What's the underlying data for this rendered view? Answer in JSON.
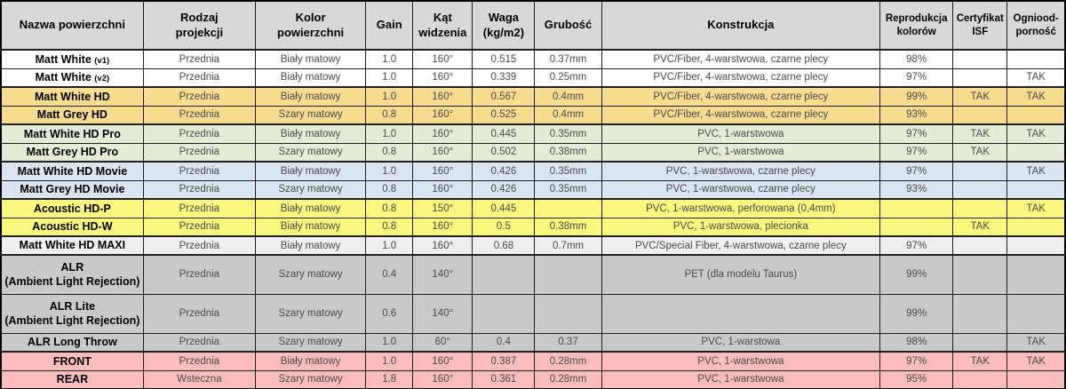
{
  "table": {
    "header_bg": "#D8D8D8",
    "text_color": "#4A4A4A",
    "group_colors": {
      "white": "#FFFFFF",
      "tan": "#F7DB8E",
      "green": "#E4ECD8",
      "blue": "#D9E5F1",
      "yellow": "#FAF77E",
      "lightgray": "#EFEFEF",
      "gray": "#C9C9C9",
      "pink": "#FABDBB"
    },
    "columns": [
      {
        "key": "name",
        "label": "Nazwa powierzchni",
        "small": false
      },
      {
        "key": "projection",
        "label": "Rodzaj\nprojekcji",
        "small": false
      },
      {
        "key": "color",
        "label": "Kolor\npowierzchni",
        "small": false
      },
      {
        "key": "gain",
        "label": "Gain",
        "small": false
      },
      {
        "key": "angle",
        "label": "Kąt\nwidzenia",
        "small": false
      },
      {
        "key": "weight",
        "label": "Waga\n(kg/m2)",
        "small": false
      },
      {
        "key": "thickness",
        "label": "Grubość",
        "small": false
      },
      {
        "key": "construction",
        "label": "Konstrukcja",
        "small": false
      },
      {
        "key": "reproduction",
        "label": "Reprodukcja\nkolorów",
        "small": true
      },
      {
        "key": "isf",
        "label": "Certyfikat\nISF",
        "small": true
      },
      {
        "key": "fire",
        "label": "Ogniood-\nporność",
        "small": true
      }
    ],
    "rows": [
      {
        "group": "white",
        "name": "Matt White",
        "name_suffix": "(v1)",
        "tall": false,
        "projection": "Przednia",
        "color": "Biały matowy",
        "gain": "1.0",
        "angle": "160°",
        "weight": "0.515",
        "thickness": "0.37mm",
        "construction": "PVC/Fiber, 4-warstwowa, czarne plecy",
        "reproduction": "98%",
        "isf": "",
        "fire": ""
      },
      {
        "group": "white",
        "name": "Matt White",
        "name_suffix": "(v2)",
        "tall": false,
        "projection": "Przednia",
        "color": "Biały matowy",
        "gain": "1.0",
        "angle": "160°",
        "weight": "0.339",
        "thickness": "0.25mm",
        "construction": "PVC/Fiber, 4-warstwowa, czarne plecy",
        "reproduction": "97%",
        "isf": "",
        "fire": "TAK"
      },
      {
        "group": "tan",
        "name": "Matt White HD",
        "name_suffix": "",
        "tall": false,
        "projection": "Przednia",
        "color": "Biały matowy",
        "gain": "1.0",
        "angle": "160°",
        "weight": "0.567",
        "thickness": "0.4mm",
        "construction": "PVC/Fiber, 4-warstwowa, czarne plecy",
        "reproduction": "99%",
        "isf": "TAK",
        "fire": "TAK"
      },
      {
        "group": "tan",
        "name": "Matt Grey HD",
        "name_suffix": "",
        "tall": false,
        "projection": "Przednia",
        "color": "Szary matowy",
        "gain": "0.8",
        "angle": "160°",
        "weight": "0.525",
        "thickness": "0.4mm",
        "construction": "PVC/Fiber, 4-warstwowa, czarne plecy",
        "reproduction": "93%",
        "isf": "",
        "fire": ""
      },
      {
        "group": "green",
        "name": "Matt White HD Pro",
        "name_suffix": "",
        "tall": false,
        "projection": "Przednia",
        "color": "Biały matowy",
        "gain": "1.0",
        "angle": "160°",
        "weight": "0.445",
        "thickness": "0.35mm",
        "construction": "PVC, 1-warstwowa",
        "reproduction": "97%",
        "isf": "TAK",
        "fire": "TAK"
      },
      {
        "group": "green",
        "name": "Matt Grey HD Pro",
        "name_suffix": "",
        "tall": false,
        "projection": "Przednia",
        "color": "Szary matowy",
        "gain": "0.8",
        "angle": "160°",
        "weight": "0.502",
        "thickness": "0.38mm",
        "construction": "PVC, 1-warstwowa",
        "reproduction": "97%",
        "isf": "TAK",
        "fire": ""
      },
      {
        "group": "blue",
        "name": "Matt White HD Movie",
        "name_suffix": "",
        "tall": false,
        "projection": "Przednia",
        "color": "Biały matowy",
        "gain": "1.0",
        "angle": "160°",
        "weight": "0.426",
        "thickness": "0.35mm",
        "construction": "PVC, 1-warstwowa, czarne plecy",
        "reproduction": "97%",
        "isf": "",
        "fire": "TAK"
      },
      {
        "group": "blue",
        "name": "Matt Grey HD Movie",
        "name_suffix": "",
        "tall": false,
        "projection": "Przednia",
        "color": "Szary matowy",
        "gain": "0.8",
        "angle": "160°",
        "weight": "0.426",
        "thickness": "0.35mm",
        "construction": "PVC, 1-warstwowa, czarne plecy",
        "reproduction": "93%",
        "isf": "",
        "fire": ""
      },
      {
        "group": "yellow",
        "name": "Acoustic HD-P",
        "name_suffix": "",
        "tall": false,
        "projection": "Przednia",
        "color": "Biały matowy",
        "gain": "0.8",
        "angle": "150°",
        "weight": "0.445",
        "thickness": "",
        "construction": "PVC, 1-warstwowa, perforowana (0,4mm)",
        "reproduction": "",
        "isf": "",
        "fire": "TAK"
      },
      {
        "group": "yellow",
        "name": "Acoustic HD-W",
        "name_suffix": "",
        "tall": false,
        "projection": "Przednia",
        "color": "Biały matowy",
        "gain": "0.8",
        "angle": "160°",
        "weight": "0.5",
        "thickness": "0.38mm",
        "construction": "PVC, 1-warstwowa, plecionka",
        "reproduction": "",
        "isf": "TAK",
        "fire": ""
      },
      {
        "group": "lightgray",
        "name": "Matt White HD MAXI",
        "name_suffix": "",
        "tall": false,
        "projection": "Przednia",
        "color": "Biały matowy",
        "gain": "1.0",
        "angle": "160°",
        "weight": "0.68",
        "thickness": "0.7mm",
        "construction": "PVC/Special Fiber, 4-warstwowa, czarne plecy",
        "reproduction": "97%",
        "isf": "",
        "fire": ""
      },
      {
        "group": "gray",
        "name": "ALR\n(Ambient Light Rejection)",
        "name_suffix": "",
        "tall": true,
        "projection": "Przednia",
        "color": "Szary matowy",
        "gain": "0.4",
        "angle": "140°",
        "weight": "",
        "thickness": "",
        "construction": "PET (dla modelu Taurus)",
        "reproduction": "99%",
        "isf": "",
        "fire": ""
      },
      {
        "group": "gray",
        "name": "ALR Lite\n(Ambient Light Rejection)",
        "name_suffix": "",
        "tall": true,
        "projection": "Przednia",
        "color": "Szary matowy",
        "gain": "0.6",
        "angle": "140°",
        "weight": "",
        "thickness": "",
        "construction": "",
        "reproduction": "99%",
        "isf": "",
        "fire": ""
      },
      {
        "group": "gray",
        "name": "ALR Long Throw",
        "name_suffix": "",
        "tall": false,
        "projection": "Przednia",
        "color": "Szary matowy",
        "gain": "1.0",
        "angle": "60°",
        "weight": "0.4",
        "thickness": "0.37",
        "construction": "PVC, 1-warstowa",
        "reproduction": "98%",
        "isf": "",
        "fire": "TAK"
      },
      {
        "group": "pink",
        "name": "FRONT",
        "name_suffix": "",
        "tall": false,
        "projection": "Przednia",
        "color": "Biały matowy",
        "gain": "1.0",
        "angle": "160°",
        "weight": "0.387",
        "thickness": "0.28mm",
        "construction": "PVC, 1-warstwowa",
        "reproduction": "97%",
        "isf": "TAK",
        "fire": "TAK"
      },
      {
        "group": "pink",
        "name": "REAR",
        "name_suffix": "",
        "tall": false,
        "projection": "Wsteczna",
        "color": "Szary matowy",
        "gain": "1.8",
        "angle": "160°",
        "weight": "0.361",
        "thickness": "0.28mm",
        "construction": "PVC, 1-warstwowa",
        "reproduction": "95%",
        "isf": "",
        "fire": ""
      }
    ]
  }
}
